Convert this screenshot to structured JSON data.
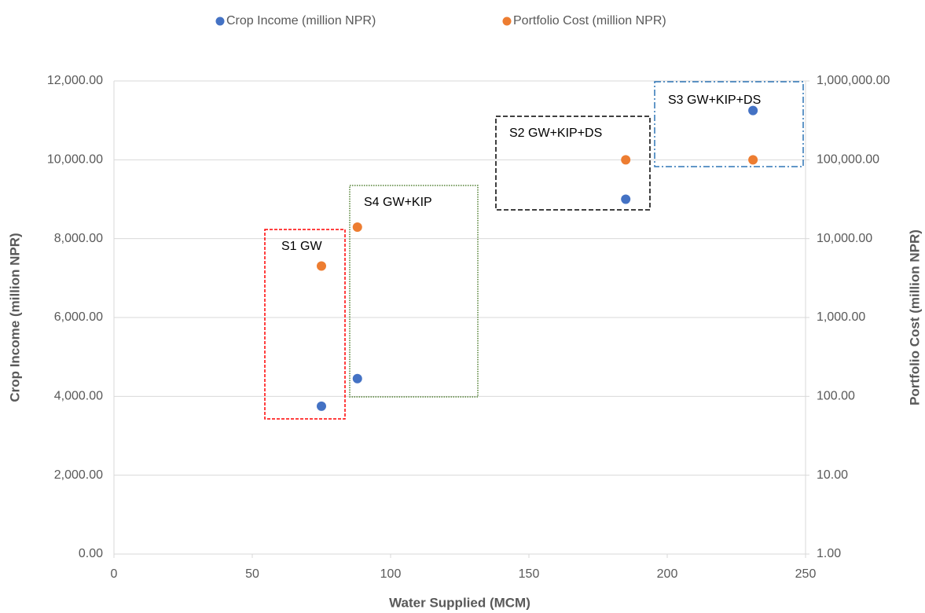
{
  "chart_data": {
    "type": "scatter",
    "x": [
      75,
      88,
      185,
      231
    ],
    "series": [
      {
        "name": "Crop Income (million NPR)",
        "color": "#4472c4",
        "values": [
          3750,
          4450,
          9000,
          11250
        ]
      },
      {
        "name": "Portfolio Cost (million NPR)",
        "color": "#ed7d31",
        "axis": "y2",
        "values": [
          4500,
          14000,
          100000,
          100000
        ]
      }
    ],
    "xlabel": "Water Supplied (MCM)",
    "ylabel": "Crop Income (million NPR)",
    "y2label": "Portfolio Cost (million NPR)",
    "xlim": [
      0,
      250
    ],
    "xticks": [
      0,
      50,
      100,
      150,
      200,
      250
    ],
    "ylim": [
      0,
      12000
    ],
    "yticks": [
      {
        "value": 0,
        "label": "0.00"
      },
      {
        "value": 2000,
        "label": "2,000.00"
      },
      {
        "value": 4000,
        "label": "4,000.00"
      },
      {
        "value": 6000,
        "label": "6,000.00"
      },
      {
        "value": 8000,
        "label": "8,000.00"
      },
      {
        "value": 10000,
        "label": "10,000.00"
      },
      {
        "value": 12000,
        "label": "12,000.00"
      }
    ],
    "y2lim": [
      1,
      1000000
    ],
    "y2log": true,
    "y2ticks": [
      {
        "value": 1,
        "label": "1.00"
      },
      {
        "value": 10,
        "label": "10.00"
      },
      {
        "value": 100,
        "label": "100.00"
      },
      {
        "value": 1000,
        "label": "1,000.00"
      },
      {
        "value": 10000,
        "label": "10,000.00"
      },
      {
        "value": 100000,
        "label": "100,000.00"
      },
      {
        "value": 1000000,
        "label": "1,000,000.00"
      }
    ],
    "grid": true,
    "legend": "top",
    "annotations": [
      "S1 GW",
      "S4 GW+KIP",
      "S2 GW+KIP+DS",
      "S3 GW+KIP+DS"
    ]
  }
}
